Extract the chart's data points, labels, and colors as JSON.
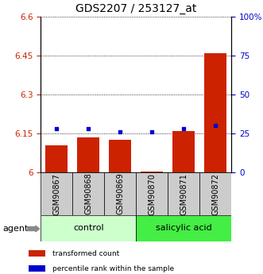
{
  "title": "GDS2207 / 253127_at",
  "samples": [
    "GSM90867",
    "GSM90868",
    "GSM90869",
    "GSM90870",
    "GSM90871",
    "GSM90872"
  ],
  "red_values": [
    6.105,
    6.135,
    6.125,
    6.005,
    6.16,
    6.46
  ],
  "blue_values_pct": [
    28,
    28,
    26,
    26,
    28,
    30
  ],
  "left_ylim": [
    6.0,
    6.6
  ],
  "left_yticks": [
    6.0,
    6.15,
    6.3,
    6.45,
    6.6
  ],
  "left_ytick_labels": [
    "6",
    "6.15",
    "6.3",
    "6.45",
    "6.6"
  ],
  "right_ylim": [
    0,
    100
  ],
  "right_yticks": [
    0,
    25,
    50,
    75,
    100
  ],
  "right_ytick_labels": [
    "0",
    "25",
    "50",
    "75",
    "100%"
  ],
  "bar_base": 6.0,
  "control_label": "control",
  "salicylic_label": "salicylic acid",
  "agent_label": "agent",
  "legend_red": "transformed count",
  "legend_blue": "percentile rank within the sample",
  "title_fontsize": 10,
  "tick_fontsize": 7.5,
  "label_fontsize": 7,
  "bar_color": "#cc2200",
  "dot_color": "#0000cc",
  "control_bg": "#ccffcc",
  "salicylic_bg": "#44ee44",
  "sample_bg": "#cccccc",
  "grid_color": "#000000",
  "dotted_yticks": [
    6.15,
    6.3,
    6.45,
    6.6
  ]
}
